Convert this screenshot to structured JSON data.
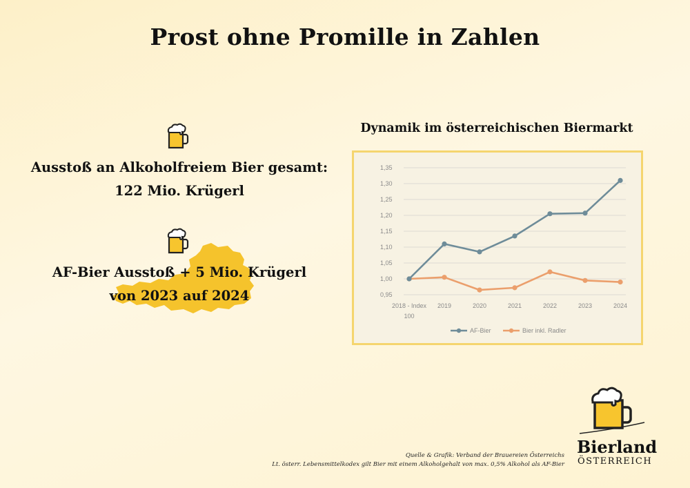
{
  "page": {
    "title": "Prost ohne Promille in Zahlen"
  },
  "stat1": {
    "line1": "Ausstoß an Alkoholfreiem Bier gesamt:",
    "line2": "122 Mio. Krügerl"
  },
  "stat2": {
    "line1": "AF-Bier Ausstoß + 5 Mio. Krügerl",
    "line2": "von 2023 auf 2024"
  },
  "source": {
    "line1": "Quelle & Grafik: Verband der Brauereien Österreichs",
    "line2": "Lt. österr. Lebensmittelkodex gilt Bier mit einem Alkoholgehalt von max. 0,5% Alkohol als AF-Bier"
  },
  "logo": {
    "name": "Bierland",
    "country": "ÖSTERREICH"
  },
  "icons": [
    "beer-mug-icon",
    "austria-map-icon",
    "bierland-logo-icon"
  ],
  "colors": {
    "accent_yellow": "#f5c32c",
    "af_bier": "#6e8c99",
    "bier_inkl_radler": "#eb9f6c",
    "frame": "#f5d56e"
  },
  "chart_data": {
    "type": "line",
    "title": "Dynamik im österreichischen Biermarkt",
    "categories": [
      "2018 - Index 100",
      "2019",
      "2020",
      "2021",
      "2022",
      "2023",
      "2024"
    ],
    "series": [
      {
        "name": "AF-Bier",
        "values": [
          1.0,
          1.11,
          1.085,
          1.135,
          1.205,
          1.207,
          1.31
        ],
        "color": "#6e8c99"
      },
      {
        "name": "Bier inkl. Radler",
        "values": [
          1.0,
          1.005,
          0.965,
          0.972,
          1.022,
          0.995,
          0.99
        ],
        "color": "#eb9f6c"
      }
    ],
    "yticks": [
      "0,95",
      "1,00",
      "1,05",
      "1,10",
      "1,15",
      "1,20",
      "1,25",
      "1,30",
      "1,35"
    ],
    "ylim": [
      0.95,
      1.35
    ],
    "grid": true,
    "legend": "bottom"
  }
}
